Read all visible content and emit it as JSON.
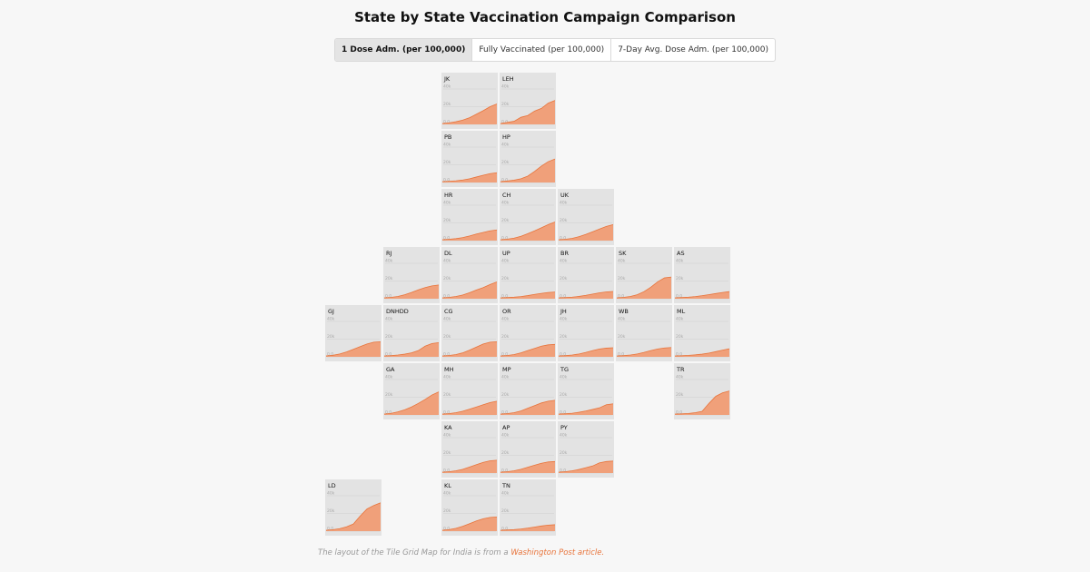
{
  "title": "State by State Vaccination Campaign Comparison",
  "tabs": [
    {
      "label": "1 Dose Adm. (per 100,000)",
      "active": true
    },
    {
      "label": "Fully Vaccinated (per 100,000)",
      "active": false
    },
    {
      "label": "7-Day Avg. Dose Adm. (per 100,000)",
      "active": false
    }
  ],
  "colors": {
    "area": "#f0a07a",
    "line": "#e8743b",
    "tile": "#e3e3e3",
    "link": "#e8743b"
  },
  "footer": {
    "text": "The layout of the Tile Grid Map for India is from a ",
    "link": "Washington Post article."
  },
  "chart_data": {
    "type": "area",
    "layout": "tile grid map",
    "y_ticks": [
      "40k",
      "20k",
      "0.0"
    ],
    "ylim": [
      0,
      40000
    ],
    "tiles": [
      {
        "code": "JK",
        "row": 0,
        "col": 2,
        "values": [
          0,
          800,
          2000,
          3800,
          6500,
          10500,
          14500,
          19000,
          22000
        ]
      },
      {
        "code": "LEH",
        "row": 0,
        "col": 3,
        "values": [
          0,
          1200,
          2500,
          7000,
          9000,
          14000,
          17000,
          23000,
          26000
        ]
      },
      {
        "code": "PB",
        "row": 1,
        "col": 2,
        "values": [
          0,
          400,
          900,
          1800,
          3200,
          5200,
          7200,
          9000,
          10000
        ]
      },
      {
        "code": "HP",
        "row": 1,
        "col": 3,
        "values": [
          0,
          700,
          1600,
          3200,
          6200,
          11500,
          17500,
          22500,
          25500
        ]
      },
      {
        "code": "HR",
        "row": 2,
        "col": 2,
        "values": [
          0,
          500,
          1200,
          2400,
          4200,
          6400,
          8200,
          10000,
          11000
        ]
      },
      {
        "code": "CH",
        "row": 2,
        "col": 3,
        "values": [
          0,
          600,
          1800,
          3800,
          6800,
          10000,
          13500,
          17000,
          20000
        ]
      },
      {
        "code": "UK",
        "row": 2,
        "col": 4,
        "values": [
          0,
          500,
          1500,
          3500,
          6000,
          9000,
          12000,
          15000,
          17000
        ]
      },
      {
        "code": "RJ",
        "row": 3,
        "col": 1,
        "values": [
          0,
          500,
          1500,
          3500,
          6000,
          9000,
          11500,
          13500,
          14500
        ]
      },
      {
        "code": "DL",
        "row": 3,
        "col": 2,
        "values": [
          0,
          500,
          1500,
          3200,
          5800,
          8800,
          11500,
          15000,
          18000
        ]
      },
      {
        "code": "UP",
        "row": 3,
        "col": 3,
        "values": [
          0,
          300,
          700,
          1400,
          2500,
          3800,
          5000,
          6000,
          6500
        ]
      },
      {
        "code": "BR",
        "row": 3,
        "col": 4,
        "values": [
          0,
          300,
          800,
          1600,
          2800,
          4200,
          5600,
          6700,
          7200
        ]
      },
      {
        "code": "SK",
        "row": 3,
        "col": 5,
        "values": [
          0,
          500,
          1500,
          3500,
          7000,
          12000,
          18000,
          22500,
          23500
        ]
      },
      {
        "code": "AS",
        "row": 3,
        "col": 6,
        "values": [
          0,
          300,
          700,
          1400,
          2400,
          3600,
          4800,
          6000,
          7000
        ]
      },
      {
        "code": "GJ",
        "row": 4,
        "col": 0,
        "values": [
          0,
          700,
          2200,
          4500,
          7500,
          10500,
          13500,
          15500,
          16000
        ]
      },
      {
        "code": "DNHDD",
        "row": 4,
        "col": 1,
        "values": [
          0,
          300,
          1000,
          2000,
          3500,
          6000,
          11000,
          14000,
          15000
        ]
      },
      {
        "code": "CG",
        "row": 4,
        "col": 2,
        "values": [
          0,
          500,
          1500,
          3500,
          6500,
          10000,
          13500,
          15500,
          16000
        ]
      },
      {
        "code": "OR",
        "row": 4,
        "col": 3,
        "values": [
          0,
          500,
          1500,
          3500,
          6000,
          8500,
          11000,
          12500,
          13000
        ]
      },
      {
        "code": "JH",
        "row": 4,
        "col": 4,
        "values": [
          0,
          300,
          1000,
          2200,
          4000,
          6000,
          7800,
          8800,
          9200
        ]
      },
      {
        "code": "WB",
        "row": 4,
        "col": 5,
        "values": [
          0,
          300,
          1000,
          2200,
          4000,
          6000,
          7800,
          9000,
          9500
        ]
      },
      {
        "code": "ML",
        "row": 4,
        "col": 6,
        "values": [
          0,
          200,
          600,
          1200,
          2000,
          3200,
          4800,
          6500,
          8000
        ]
      },
      {
        "code": "GA",
        "row": 5,
        "col": 1,
        "values": [
          0,
          800,
          2400,
          4800,
          8000,
          12000,
          16500,
          21500,
          25000
        ]
      },
      {
        "code": "MH",
        "row": 5,
        "col": 2,
        "values": [
          0,
          500,
          1500,
          3200,
          5500,
          8000,
          10500,
          13000,
          14500
        ]
      },
      {
        "code": "MP",
        "row": 5,
        "col": 3,
        "values": [
          0,
          500,
          1500,
          3500,
          6500,
          9500,
          12500,
          14500,
          15500
        ]
      },
      {
        "code": "TG",
        "row": 5,
        "col": 4,
        "values": [
          0,
          300,
          900,
          2000,
          3500,
          5200,
          7000,
          10500,
          11500
        ]
      },
      {
        "code": "TR",
        "row": 5,
        "col": 6,
        "values": [
          0,
          200,
          600,
          1500,
          3000,
          12000,
          20000,
          24000,
          26000
        ]
      },
      {
        "code": "KA",
        "row": 6,
        "col": 2,
        "values": [
          0,
          500,
          1500,
          3200,
          5800,
          8500,
          11000,
          12800,
          13500
        ]
      },
      {
        "code": "AP",
        "row": 6,
        "col": 3,
        "values": [
          0,
          500,
          1500,
          3200,
          5500,
          7800,
          10000,
          11500,
          12000
        ]
      },
      {
        "code": "PY",
        "row": 6,
        "col": 4,
        "values": [
          0,
          500,
          1500,
          3000,
          5000,
          7000,
          10500,
          12000,
          12500
        ]
      },
      {
        "code": "LD",
        "row": 7,
        "col": 0,
        "values": [
          0,
          600,
          1800,
          3800,
          7000,
          16000,
          24000,
          28000,
          31000
        ]
      },
      {
        "code": "KL",
        "row": 7,
        "col": 2,
        "values": [
          0,
          800,
          2200,
          4500,
          7500,
          10500,
          13000,
          14500,
          15000
        ]
      },
      {
        "code": "TN",
        "row": 7,
        "col": 3,
        "values": [
          0,
          300,
          700,
          1400,
          2400,
          3600,
          4800,
          5800,
          6200
        ]
      }
    ]
  }
}
